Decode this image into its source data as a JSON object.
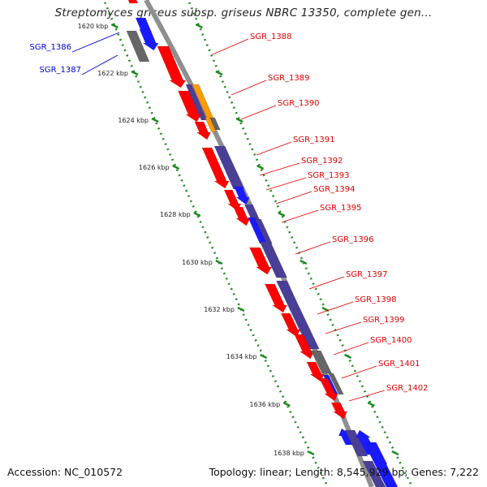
{
  "title": "Streptomyces griseus subsp. griseus NBRC 13350, complete gen...",
  "footer": {
    "accession": "Accession: NC_010572",
    "topology": "Topology: linear; Length: 8,545,929 bp; Genes: 7,222"
  },
  "colors": {
    "backbone": "#8f8f8f",
    "guide_dots": "#1e8a1e",
    "red": "#ff0000",
    "blue": "#1a1aff",
    "navy": "#4a3f96",
    "gray": "#666666",
    "orange": "#ff9a00",
    "label_red": "#dd0000",
    "label_blue": "#0000cc"
  },
  "ruler": {
    "unit": "kbp",
    "ticks": [
      {
        "label": "1620 kbp"
      },
      {
        "label": "1622 kbp"
      },
      {
        "label": "1624 kbp"
      },
      {
        "label": "1626 kbp"
      },
      {
        "label": "1628 kbp"
      },
      {
        "label": "1630 kbp"
      },
      {
        "label": "1632 kbp"
      },
      {
        "label": "1634 kbp"
      },
      {
        "label": "1636 kbp"
      },
      {
        "label": "1638 kbp"
      }
    ]
  },
  "gene_labels_left": [
    {
      "name": "SGR_1386"
    },
    {
      "name": "SGR_1387"
    }
  ],
  "gene_labels_right": [
    {
      "name": "SGR_1388"
    },
    {
      "name": "SGR_1389"
    },
    {
      "name": "SGR_1390"
    },
    {
      "name": "SGR_1391"
    },
    {
      "name": "SGR_1392"
    },
    {
      "name": "SGR_1393"
    },
    {
      "name": "SGR_1394"
    },
    {
      "name": "SGR_1395"
    },
    {
      "name": "SGR_1396"
    },
    {
      "name": "SGR_1397"
    },
    {
      "name": "SGR_1398"
    },
    {
      "name": "SGR_1399"
    },
    {
      "name": "SGR_1400"
    },
    {
      "name": "SGR_1401"
    },
    {
      "name": "SGR_1402"
    }
  ]
}
